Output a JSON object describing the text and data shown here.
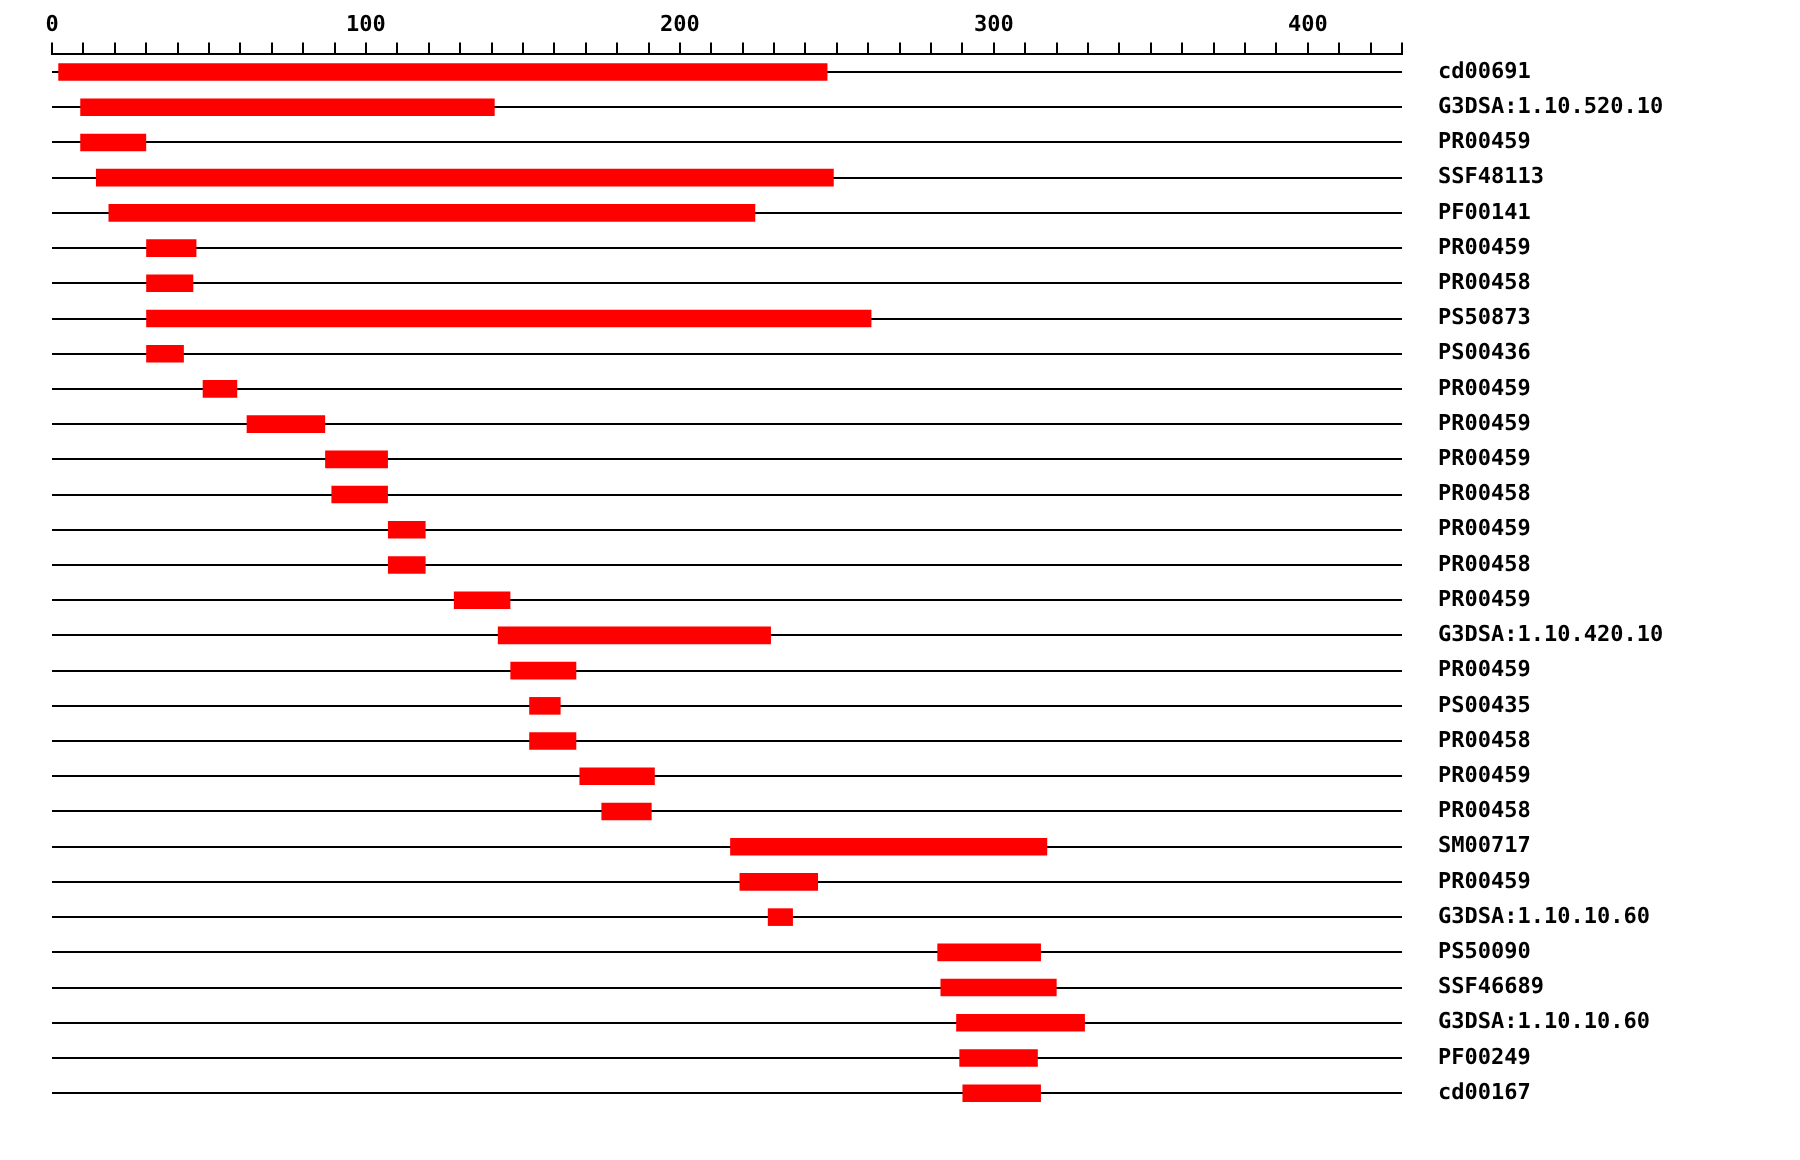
{
  "chart_data": {
    "type": "bar",
    "orientation": "horizontal",
    "categories": [
      "cd00691",
      "G3DSA:1.10.520.10",
      "PR00459",
      "SSF48113",
      "PF00141",
      "PR00459",
      "PR00458",
      "PS50873",
      "PS00436",
      "PR00459",
      "PR00459",
      "PR00459",
      "PR00458",
      "PR00459",
      "PR00458",
      "PR00459",
      "G3DSA:1.10.420.10",
      "PR00459",
      "PS00435",
      "PR00458",
      "PR00459",
      "PR00458",
      "SM00717",
      "PR00459",
      "G3DSA:1.10.10.60",
      "PS50090",
      "SSF46689",
      "G3DSA:1.10.10.60",
      "PF00249",
      "cd00167"
    ],
    "base": [
      2,
      9,
      9,
      14,
      18,
      30,
      30,
      30,
      30,
      48,
      62,
      87,
      89,
      107,
      107,
      128,
      142,
      146,
      152,
      152,
      168,
      175,
      216,
      219,
      228,
      282,
      283,
      288,
      289,
      290
    ],
    "values": [
      245,
      132,
      21,
      235,
      206,
      16,
      15,
      231,
      12,
      11,
      25,
      20,
      18,
      12,
      12,
      18,
      87,
      21,
      10,
      15,
      24,
      16,
      101,
      25,
      8,
      33,
      37,
      41,
      25,
      25
    ],
    "color": "#ff0000",
    "xlim": [
      0,
      430
    ],
    "xticks": [
      0,
      {
        "value": 10,
        "label": null
      },
      {
        "value": 20,
        "label": null
      },
      {
        "value": 30,
        "label": null
      },
      {
        "value": 40,
        "label": null
      },
      {
        "value": 50,
        "label": null
      },
      {
        "value": 60,
        "label": null
      },
      {
        "value": 70,
        "label": null
      },
      {
        "value": 80,
        "label": null
      },
      {
        "value": 90,
        "label": null
      },
      100,
      {
        "value": 110,
        "label": null
      },
      {
        "value": 120,
        "label": null
      },
      {
        "value": 130,
        "label": null
      },
      {
        "value": 140,
        "label": null
      },
      {
        "value": 150,
        "label": null
      },
      {
        "value": 160,
        "label": null
      },
      {
        "value": 170,
        "label": null
      },
      {
        "value": 180,
        "label": null
      },
      {
        "value": 190,
        "label": null
      },
      200,
      {
        "value": 210,
        "label": null
      },
      {
        "value": 220,
        "label": null
      },
      {
        "value": 230,
        "label": null
      },
      {
        "value": 240,
        "label": null
      },
      {
        "value": 250,
        "label": null
      },
      {
        "value": 260,
        "label": null
      },
      {
        "value": 270,
        "label": null
      },
      {
        "value": 280,
        "label": null
      },
      {
        "value": 290,
        "label": null
      },
      300,
      {
        "value": 310,
        "label": null
      },
      {
        "value": 320,
        "label": null
      },
      {
        "value": 330,
        "label": null
      },
      {
        "value": 340,
        "label": null
      },
      {
        "value": 350,
        "label": null
      },
      {
        "value": 360,
        "label": null
      },
      {
        "value": 370,
        "label": null
      },
      {
        "value": 380,
        "label": null
      },
      {
        "value": 390,
        "label": null
      },
      400,
      {
        "value": 410,
        "label": null
      },
      {
        "value": 420,
        "label": null
      },
      {
        "value": 430,
        "label": null
      }
    ],
    "grid": "y",
    "legend": false
  }
}
